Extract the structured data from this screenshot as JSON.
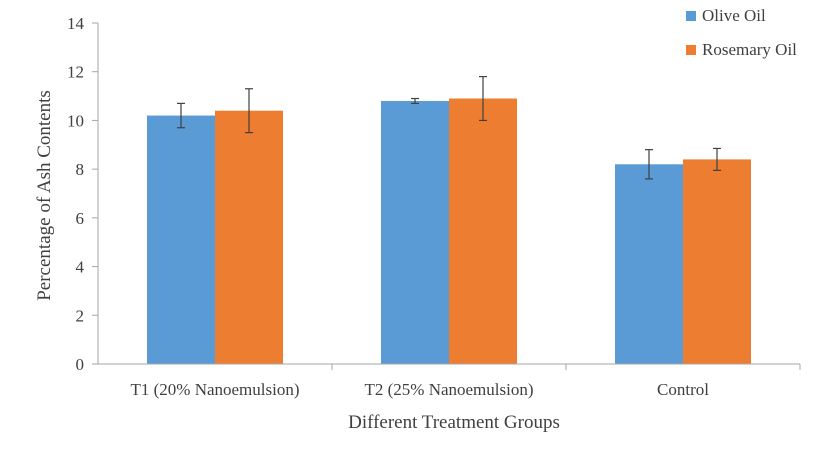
{
  "chart_data": {
    "type": "bar",
    "title": "",
    "xlabel": "Different Treatment Groups",
    "ylabel": "Percentage of Ash Contents",
    "categories": [
      "T1 (20% Nanoemulsion)",
      "T2 (25% Nanoemulsion)",
      "Control"
    ],
    "ylim": [
      0,
      14
    ],
    "yticks": [
      0,
      2,
      4,
      6,
      8,
      10,
      12,
      14
    ],
    "grid": false,
    "legend_position": "top-right",
    "series": [
      {
        "name": "Olive Oil",
        "color": "#5B9BD5",
        "values": [
          10.2,
          10.8,
          8.2
        ],
        "errors": [
          0.5,
          0.1,
          0.6
        ]
      },
      {
        "name": "Rosemary Oil",
        "color": "#ED7D31",
        "values": [
          10.4,
          10.9,
          8.4
        ],
        "errors": [
          0.9,
          0.9,
          0.45
        ]
      }
    ]
  }
}
